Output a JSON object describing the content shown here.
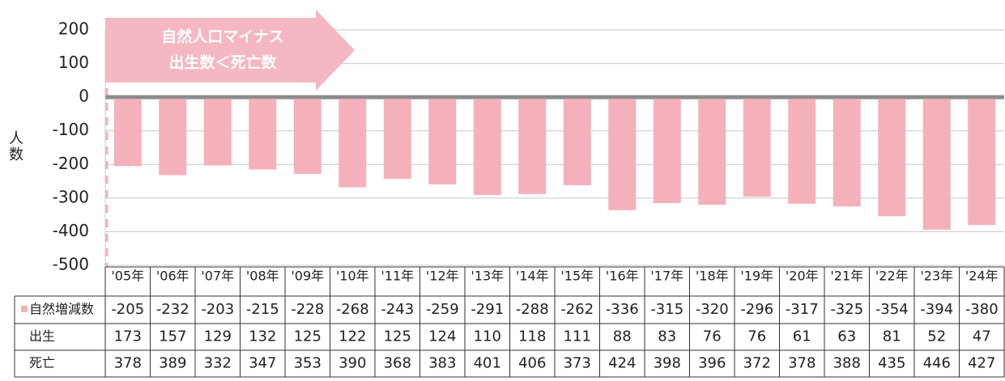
{
  "chart_data": {
    "type": "bar",
    "y_label": "人数",
    "annotations": [
      "自然人口マイナス",
      "出生数＜死亡数"
    ],
    "categories": [
      "'05年",
      "'06年",
      "'07年",
      "'08年",
      "'09年",
      "'10年",
      "'11年",
      "'12年",
      "'13年",
      "'14年",
      "'15年",
      "'16年",
      "'17年",
      "'18年",
      "'19年",
      "'20年",
      "'21年",
      "'22年",
      "'23年",
      "'24年"
    ],
    "series": [
      {
        "name": "自然増減数",
        "color": "#f4b1bc",
        "values": [
          -205,
          -232,
          -203,
          -215,
          -228,
          -268,
          -243,
          -259,
          -291,
          -288,
          -262,
          -336,
          -315,
          -320,
          -296,
          -317,
          -325,
          -354,
          -394,
          -380
        ]
      }
    ],
    "table_rows": [
      {
        "name": "出生",
        "values": [
          173,
          157,
          129,
          132,
          125,
          122,
          125,
          124,
          110,
          118,
          111,
          88,
          83,
          76,
          76,
          61,
          63,
          81,
          52,
          47
        ]
      },
      {
        "name": "死亡",
        "values": [
          378,
          389,
          332,
          347,
          353,
          390,
          368,
          383,
          401,
          406,
          373,
          424,
          398,
          396,
          372,
          378,
          388,
          435,
          446,
          427
        ]
      }
    ],
    "ylim": [
      -500,
      200
    ],
    "yticks": [
      -500,
      -400,
      -300,
      -200,
      -100,
      0,
      100,
      200
    ],
    "grid": true
  }
}
